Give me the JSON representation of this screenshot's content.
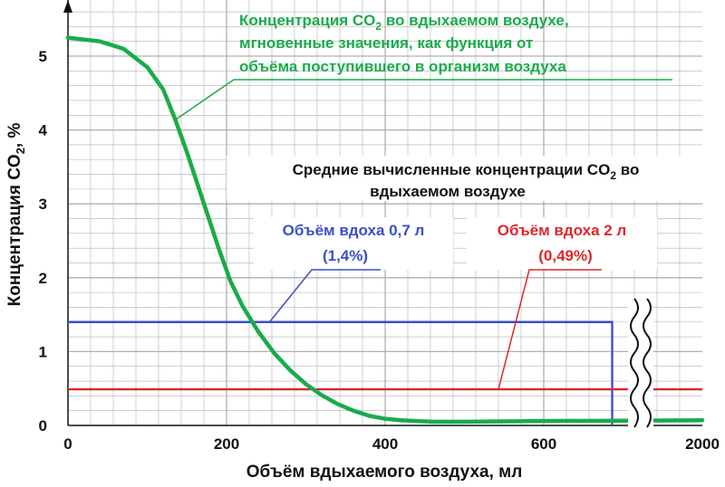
{
  "chart_data": {
    "type": "line",
    "xlabel": "Объём вдыхаемого воздуха, мл",
    "ylabel_parts": [
      "Концентрация CO",
      "2",
      ", %"
    ],
    "x_ticks": [
      "0",
      "200",
      "400",
      "600",
      "2000"
    ],
    "y_ticks": [
      "0",
      "1",
      "2",
      "3",
      "4",
      "5"
    ],
    "ylim": [
      0,
      5.5
    ],
    "grid": true,
    "axis_break": "between 600 and 2000",
    "series": [
      {
        "name_lines": [
          [
            "Концентрация CO",
            "2",
            " во вдыхаемом воздухе,"
          ],
          [
            "мгновенные значения, как функция от"
          ],
          [
            "объёма поступившего в организм воздуха"
          ]
        ],
        "color": "#1aab4b",
        "x": [
          0,
          40,
          70,
          100,
          120,
          135,
          150,
          170,
          190,
          205,
          220,
          240,
          260,
          280,
          300,
          320,
          340,
          360,
          380,
          400,
          420,
          440,
          460,
          500,
          600,
          2000
        ],
        "y": [
          5.25,
          5.2,
          5.1,
          4.85,
          4.55,
          4.15,
          3.7,
          3.05,
          2.4,
          1.95,
          1.62,
          1.27,
          0.98,
          0.75,
          0.56,
          0.41,
          0.29,
          0.2,
          0.13,
          0.09,
          0.07,
          0.06,
          0.05,
          0.05,
          0.06,
          0.07
        ]
      },
      {
        "name": "Объём вдоха 0,7 л",
        "value_label": "(1,4%)",
        "color": "#3b4fc9",
        "value": 1.4,
        "x_end": 700
      },
      {
        "name": "Объём вдоха 2 л",
        "value_label": "(0,49%)",
        "color": "#e0252c",
        "value": 0.49,
        "x_end": 2000
      }
    ],
    "annotation_mean_lines": [
      [
        "Средние вычисленные концентрации CO",
        "2",
        " во"
      ],
      [
        "вдыхаемом воздухе"
      ]
    ]
  }
}
